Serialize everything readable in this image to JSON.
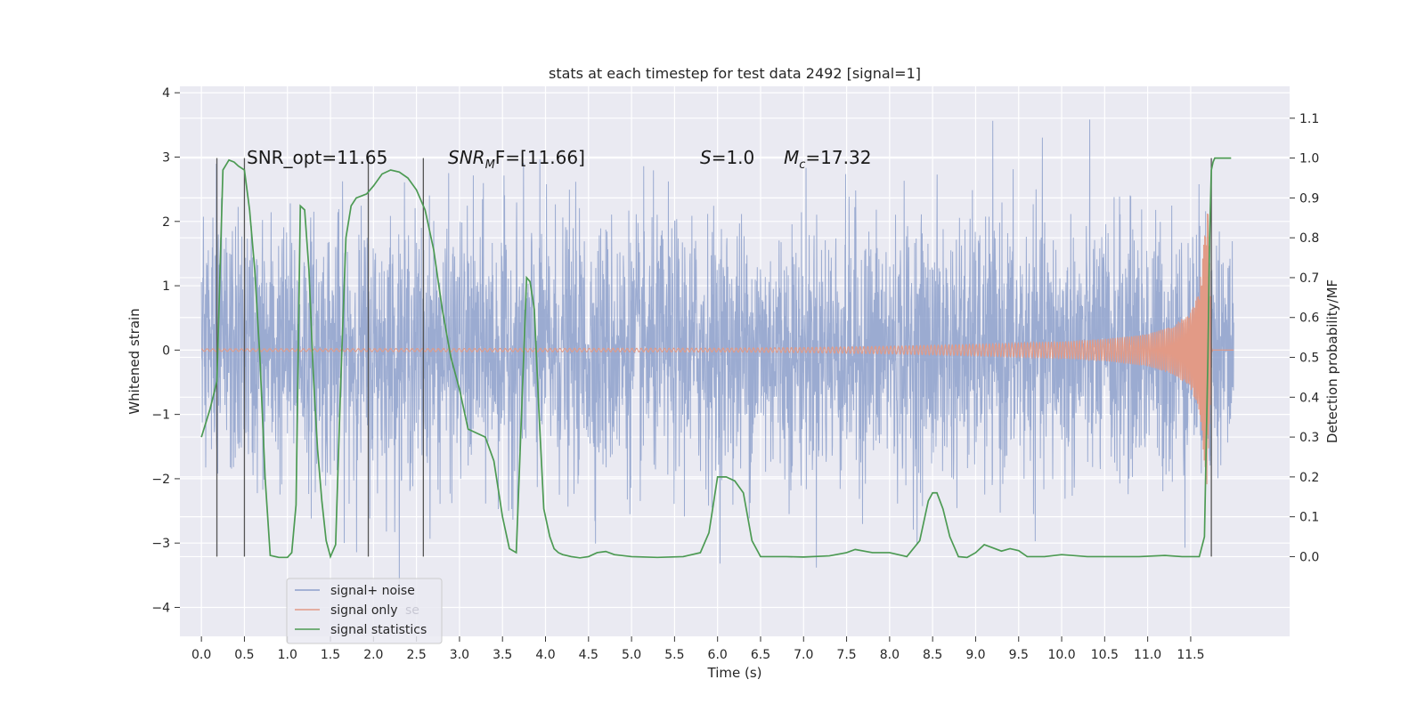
{
  "chart_data": {
    "type": "line",
    "title": "stats at each timestep for test data 2492 [signal=1]",
    "xlabel": "Time (s)",
    "ylabel": "Whitened strain",
    "y2label": "Detection probability/MF",
    "xlim": [
      -0.25,
      12.65
    ],
    "ylim": [
      -4.45,
      4.1
    ],
    "y2lim": [
      -0.2,
      1.18
    ],
    "x_ticks": [
      "0.0",
      "0.5",
      "1.0",
      "1.5",
      "2.0",
      "2.5",
      "3.0",
      "3.5",
      "4.0",
      "4.5",
      "5.0",
      "5.5",
      "6.0",
      "6.5",
      "7.0",
      "7.5",
      "8.0",
      "8.5",
      "9.0",
      "9.5",
      "10.0",
      "10.5",
      "11.0",
      "11.5"
    ],
    "y_ticks": [
      "4",
      "3",
      "2",
      "1",
      "0",
      "−1",
      "−2",
      "−3",
      "−4"
    ],
    "y2_ticks": [
      "1.1",
      "1.0",
      "0.9",
      "0.8",
      "0.7",
      "0.6",
      "0.5",
      "0.4",
      "0.3",
      "0.2",
      "0.1",
      "0.0"
    ],
    "grid": true,
    "legend": {
      "position": "lower-left",
      "entries": [
        "signal+ noise",
        "signal only",
        "signal statistics"
      ],
      "ghost_text": "se"
    },
    "annotations": {
      "snr_opt": "SNR_opt=11.65",
      "snr_mf_main": "SNR",
      "snr_mf_sub": "M",
      "snr_mf_rest": "F=[11.66]",
      "s_main": "S",
      "s_rest": "=1.0",
      "mc_main": "M",
      "mc_sub": "c",
      "mc_rest": "=17.32"
    },
    "series": [
      {
        "name": "signal+ noise",
        "color": "#8da0cb",
        "axis": "left",
        "description": "white noise with std ~1.0, peaks around ±3.7",
        "x_range": [
          0.0,
          12.0
        ],
        "noise_std": 1.0
      },
      {
        "name": "signal only",
        "color": "#e29a86",
        "axis": "left",
        "description": "chirp, amplitude grows toward merger near t=11.7",
        "envelope": {
          "t": [
            0,
            6.0,
            7.0,
            8.0,
            9.0,
            10.0,
            10.5,
            11.0,
            11.3,
            11.5,
            11.6,
            11.7,
            11.75
          ],
          "amp": [
            0.02,
            0.03,
            0.04,
            0.06,
            0.09,
            0.13,
            0.17,
            0.25,
            0.38,
            0.6,
            0.95,
            2.3,
            0.0
          ]
        }
      },
      {
        "name": "signal statistics",
        "color": "#4c9a53",
        "axis": "right",
        "t": [
          0.0,
          0.1,
          0.18,
          0.25,
          0.32,
          0.38,
          0.43,
          0.5,
          0.56,
          0.62,
          0.68,
          0.74,
          0.8,
          0.9,
          1.0,
          1.05,
          1.1,
          1.15,
          1.2,
          1.25,
          1.3,
          1.35,
          1.4,
          1.45,
          1.5,
          1.56,
          1.62,
          1.68,
          1.74,
          1.8,
          1.86,
          1.92,
          2.0,
          2.1,
          2.2,
          2.3,
          2.4,
          2.5,
          2.6,
          2.7,
          2.8,
          2.9,
          3.0,
          3.1,
          3.2,
          3.3,
          3.4,
          3.5,
          3.58,
          3.66,
          3.72,
          3.78,
          3.82,
          3.87,
          3.92,
          3.98,
          4.05,
          4.1,
          4.15,
          4.2,
          4.3,
          4.4,
          4.5,
          4.6,
          4.7,
          4.8,
          5.0,
          5.3,
          5.6,
          5.8,
          5.9,
          6.0,
          6.1,
          6.2,
          6.3,
          6.4,
          6.5,
          6.8,
          7.0,
          7.3,
          7.5,
          7.6,
          7.8,
          8.0,
          8.2,
          8.35,
          8.45,
          8.5,
          8.55,
          8.62,
          8.7,
          8.8,
          8.9,
          9.0,
          9.1,
          9.2,
          9.3,
          9.4,
          9.5,
          9.6,
          9.8,
          10.0,
          10.3,
          10.6,
          10.9,
          11.2,
          11.4,
          11.5,
          11.6,
          11.66,
          11.7,
          11.72,
          11.74,
          11.76,
          11.78,
          11.82,
          11.86,
          11.92,
          11.97
        ],
        "p": [
          0.3,
          0.37,
          0.44,
          0.97,
          0.995,
          0.99,
          0.98,
          0.97,
          0.87,
          0.72,
          0.5,
          0.2,
          0.003,
          -0.002,
          -0.002,
          0.01,
          0.13,
          0.88,
          0.87,
          0.72,
          0.46,
          0.27,
          0.14,
          0.04,
          0.0,
          0.03,
          0.44,
          0.8,
          0.88,
          0.9,
          0.905,
          0.91,
          0.93,
          0.96,
          0.97,
          0.965,
          0.95,
          0.92,
          0.87,
          0.77,
          0.62,
          0.5,
          0.42,
          0.32,
          0.31,
          0.3,
          0.24,
          0.1,
          0.02,
          0.01,
          0.35,
          0.7,
          0.69,
          0.62,
          0.38,
          0.12,
          0.05,
          0.02,
          0.01,
          0.005,
          0.0,
          -0.003,
          0.0,
          0.01,
          0.013,
          0.005,
          0.0,
          -0.002,
          0.0,
          0.01,
          0.06,
          0.2,
          0.2,
          0.19,
          0.16,
          0.04,
          0.0,
          0.0,
          -0.001,
          0.002,
          0.01,
          0.018,
          0.01,
          0.01,
          0.0,
          0.04,
          0.14,
          0.16,
          0.16,
          0.12,
          0.05,
          0.0,
          -0.002,
          0.01,
          0.03,
          0.022,
          0.014,
          0.02,
          0.015,
          0.0,
          0.0,
          0.005,
          0.0,
          0.0,
          0.0,
          0.003,
          0.0,
          0.0,
          0.0,
          0.05,
          0.5,
          0.8,
          0.97,
          0.99,
          1.0,
          1.0,
          1.0,
          1.0,
          1.0
        ]
      }
    ],
    "vertical_markers": {
      "color": "#555555",
      "t": [
        0.18,
        0.5,
        1.94,
        2.58,
        11.74
      ],
      "from_prob": 0.0,
      "to_prob": 1.0
    }
  }
}
